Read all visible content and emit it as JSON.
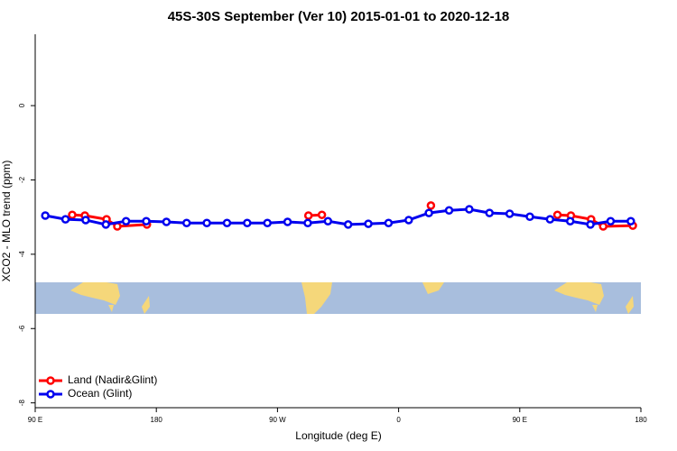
{
  "chart_data": {
    "type": "line",
    "title": "45S-30S September (Ver 10)   2015-01-01 to 2020-12-18",
    "x_label": "Longitude (deg E)",
    "y_label": "XCO2 - MLO trend (ppm)",
    "xlim": [
      90,
      540
    ],
    "ylim": [
      -8.13,
      1.92
    ],
    "xticks": [
      {
        "value": 90,
        "label": "90 E"
      },
      180,
      {
        "value": 270,
        "label": "90 W"
      },
      {
        "value": 360,
        "label": "0"
      },
      {
        "value": 450,
        "label": "90 E"
      },
      {
        "value": 540,
        "label": "180"
      }
    ],
    "yticks": [
      0,
      -2,
      -4,
      -6,
      -8
    ],
    "legend": "bottom-left",
    "series": [
      {
        "name": "Land (Nadir&Glint)",
        "color": "#ff0000",
        "x": [
          117.5,
          126.9,
          143,
          151,
          173,
          233,
          293,
          303,
          343,
          384,
          430,
          478,
          488,
          503,
          512,
          534
        ],
        "values": [
          -2.94,
          -2.96,
          -3.06,
          -3.25,
          -3.2,
          null,
          -2.96,
          -2.94,
          null,
          -2.69,
          null,
          -2.94,
          -2.96,
          -3.06,
          -3.25,
          -3.23
        ]
      },
      {
        "name": "Ocean (Glint)",
        "color": "#0000ee",
        "x": [
          97.5,
          112.5,
          127.5,
          142.5,
          157.5,
          172.5,
          187.5,
          202.5,
          217.5,
          232.5,
          247.5,
          262.5,
          277.5,
          292.5,
          307.5,
          322.5,
          337.5,
          352.5,
          367.5,
          382.5,
          397.5,
          412.5,
          427.5,
          442.5,
          457.5,
          472.5,
          487.5,
          502.5,
          517.5,
          532.5
        ],
        "values": [
          -2.96,
          -3.06,
          -3.08,
          -3.2,
          -3.11,
          -3.11,
          -3.13,
          -3.16,
          -3.16,
          -3.16,
          -3.16,
          -3.16,
          -3.13,
          -3.16,
          -3.11,
          -3.2,
          -3.18,
          -3.16,
          -3.08,
          -2.89,
          -2.82,
          -2.79,
          -2.89,
          -2.91,
          -2.99,
          -3.06,
          -3.11,
          -3.2,
          -3.11,
          -3.11
        ]
      }
    ]
  }
}
